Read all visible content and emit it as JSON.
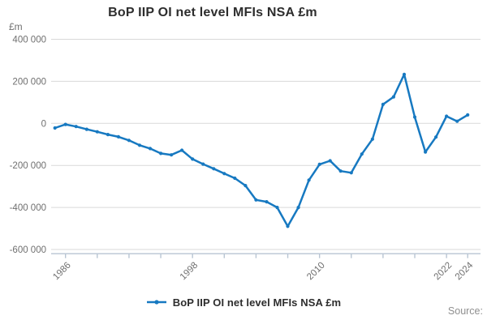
{
  "title": "BoP IIP OI net level MFIs NSA £m",
  "axis_unit": "£m",
  "legend": {
    "label": "BoP IIP OI net level MFIs NSA £m"
  },
  "source": {
    "label": "Source:"
  },
  "colors": {
    "line": "#1779c1",
    "grid": "#d9d9d9",
    "axis": "#b8c5d3",
    "muted_text": "#6f6f6f",
    "title_text": "#2d2d2d",
    "source_text": "#8f8f8f"
  },
  "chart_data": {
    "type": "line",
    "title": "BoP IIP OI net level MFIs NSA £m",
    "xlabel": "",
    "ylabel": "£m",
    "ylim": [
      -600000,
      400000
    ],
    "xlim": [
      1984.5,
      2025.5
    ],
    "grid": "horizontal",
    "legend_position": "bottom",
    "y_ticks": [
      {
        "value": 400000,
        "label": "400 000"
      },
      {
        "value": 200000,
        "label": "200 000"
      },
      {
        "value": 0,
        "label": "0"
      },
      {
        "value": -200000,
        "label": "-200 000"
      },
      {
        "value": -400000,
        "label": "-400 000"
      },
      {
        "value": -600000,
        "label": "-600 000"
      }
    ],
    "x_ticks": [
      {
        "year": 1986,
        "label": "1986"
      },
      {
        "year": 1989,
        "label": ""
      },
      {
        "year": 1992,
        "label": ""
      },
      {
        "year": 1995,
        "label": ""
      },
      {
        "year": 1998,
        "label": "1998"
      },
      {
        "year": 2001,
        "label": ""
      },
      {
        "year": 2004,
        "label": ""
      },
      {
        "year": 2007,
        "label": ""
      },
      {
        "year": 2010,
        "label": "2010"
      },
      {
        "year": 2013,
        "label": ""
      },
      {
        "year": 2016,
        "label": ""
      },
      {
        "year": 2019,
        "label": ""
      },
      {
        "year": 2022,
        "label": "2022"
      },
      {
        "year": 2024,
        "label": "2024"
      }
    ],
    "series": [
      {
        "name": "BoP IIP OI net level MFIs NSA £m",
        "x": [
          1985,
          1986,
          1987,
          1988,
          1989,
          1990,
          1991,
          1992,
          1993,
          1994,
          1995,
          1996,
          1997,
          1998,
          1999,
          2000,
          2001,
          2002,
          2003,
          2004,
          2005,
          2006,
          2007,
          2008,
          2009,
          2010,
          2011,
          2012,
          2013,
          2014,
          2015,
          2016,
          2017,
          2018,
          2019,
          2020,
          2021,
          2022,
          2023,
          2024
        ],
        "values": [
          -22000,
          -5000,
          -15000,
          -28000,
          -40000,
          -53000,
          -64000,
          -81000,
          -104000,
          -120000,
          -143000,
          -150000,
          -128000,
          -170000,
          -194000,
          -216000,
          -239000,
          -261000,
          -296000,
          -364000,
          -373000,
          -400000,
          -490000,
          -400000,
          -270000,
          -195000,
          -178000,
          -227000,
          -235000,
          -146000,
          -75000,
          90000,
          126000,
          233000,
          30000,
          -136000,
          -65000,
          34000,
          10000,
          40000
        ]
      }
    ]
  }
}
